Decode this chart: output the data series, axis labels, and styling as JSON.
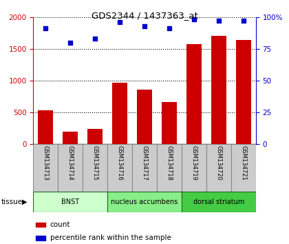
{
  "title": "GDS2344 / 1437363_at",
  "samples": [
    "GSM134713",
    "GSM134714",
    "GSM134715",
    "GSM134716",
    "GSM134717",
    "GSM134718",
    "GSM134719",
    "GSM134720",
    "GSM134721"
  ],
  "counts": [
    530,
    190,
    240,
    970,
    860,
    660,
    1570,
    1700,
    1640
  ],
  "percentiles": [
    91,
    80,
    83,
    96,
    93,
    91,
    98,
    97,
    97
  ],
  "left_ylim": [
    0,
    2000
  ],
  "right_ylim": [
    0,
    100
  ],
  "left_yticks": [
    0,
    500,
    1000,
    1500,
    2000
  ],
  "right_yticks": [
    0,
    25,
    50,
    75,
    100
  ],
  "right_yticklabels": [
    "0",
    "25",
    "50",
    "75",
    "100%"
  ],
  "bar_color": "#cc0000",
  "dot_color": "#0000cc",
  "tissue_groups": [
    {
      "label": "BNST",
      "start": 0,
      "end": 3,
      "color": "#ccffcc"
    },
    {
      "label": "nucleus accumbens",
      "start": 3,
      "end": 6,
      "color": "#88ee88"
    },
    {
      "label": "dorsal striatum",
      "start": 6,
      "end": 9,
      "color": "#44cc44"
    }
  ],
  "tissue_label": "tissue",
  "legend_count_label": "count",
  "legend_pct_label": "percentile rank within the sample",
  "bar_width": 0.6,
  "fig_bg": "#ffffff",
  "sample_box_color": "#cccccc",
  "sample_box_edge": "#888888"
}
